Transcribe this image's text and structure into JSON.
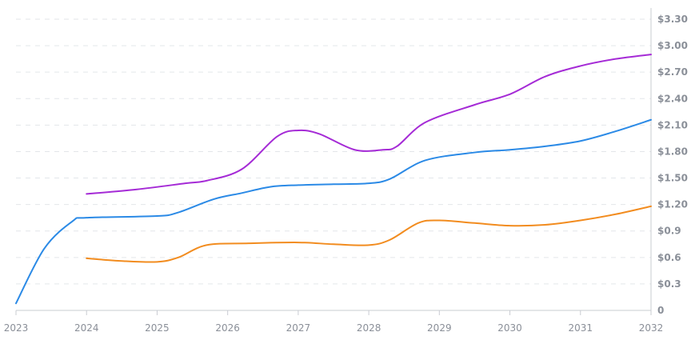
{
  "chart_data": {
    "type": "line",
    "title": "",
    "xlabel": "",
    "ylabel": "",
    "x": [
      "2023",
      "2024",
      "2025",
      "2026",
      "2027",
      "2028",
      "2029",
      "2030",
      "2031",
      "2032"
    ],
    "xlim": [
      2023,
      2032
    ],
    "ylim": [
      0,
      3.3
    ],
    "y_ticks": [
      {
        "value": 0,
        "label": "0"
      },
      {
        "value": 0.3,
        "label": "$0.3"
      },
      {
        "value": 0.6,
        "label": "$0.6"
      },
      {
        "value": 0.9,
        "label": "$0.9"
      },
      {
        "value": 1.2,
        "label": "$1.20"
      },
      {
        "value": 1.5,
        "label": "$1.50"
      },
      {
        "value": 1.8,
        "label": "$1.80"
      },
      {
        "value": 2.1,
        "label": "$2.10"
      },
      {
        "value": 2.4,
        "label": "$2.40"
      },
      {
        "value": 2.7,
        "label": "$2.70"
      },
      {
        "value": 3.0,
        "label": "$3.00"
      },
      {
        "value": 3.3,
        "label": "$3.30"
      }
    ],
    "y_axis_position": "right",
    "grid": true,
    "legend": "none",
    "series": [
      {
        "color": "#a52bd6",
        "points": [
          [
            2024,
            1.32
          ],
          [
            2024.7,
            1.37
          ],
          [
            2025.4,
            1.44
          ],
          [
            2025.7,
            1.47
          ],
          [
            2026.2,
            1.6
          ],
          [
            2026.7,
            1.97
          ],
          [
            2027.0,
            2.04
          ],
          [
            2027.3,
            2.0
          ],
          [
            2027.8,
            1.82
          ],
          [
            2028.2,
            1.82
          ],
          [
            2028.4,
            1.86
          ],
          [
            2028.8,
            2.13
          ],
          [
            2029.5,
            2.33
          ],
          [
            2030.0,
            2.45
          ],
          [
            2030.5,
            2.65
          ],
          [
            2031.0,
            2.77
          ],
          [
            2031.5,
            2.85
          ],
          [
            2032.0,
            2.9
          ]
        ]
      },
      {
        "color": "#2b8ae6",
        "points": [
          [
            2023.0,
            0.08
          ],
          [
            2023.4,
            0.7
          ],
          [
            2023.8,
            1.01
          ],
          [
            2024.0,
            1.05
          ],
          [
            2025.0,
            1.07
          ],
          [
            2025.3,
            1.11
          ],
          [
            2025.8,
            1.26
          ],
          [
            2026.2,
            1.33
          ],
          [
            2026.6,
            1.4
          ],
          [
            2027.0,
            1.42
          ],
          [
            2027.5,
            1.43
          ],
          [
            2028.0,
            1.44
          ],
          [
            2028.3,
            1.49
          ],
          [
            2028.8,
            1.7
          ],
          [
            2029.5,
            1.79
          ],
          [
            2030.0,
            1.82
          ],
          [
            2030.5,
            1.86
          ],
          [
            2031.0,
            1.92
          ],
          [
            2031.5,
            2.03
          ],
          [
            2032.0,
            2.16
          ]
        ]
      },
      {
        "color": "#f28c1f",
        "points": [
          [
            2024.0,
            0.59
          ],
          [
            2024.5,
            0.56
          ],
          [
            2025.0,
            0.55
          ],
          [
            2025.3,
            0.6
          ],
          [
            2025.7,
            0.74
          ],
          [
            2026.3,
            0.76
          ],
          [
            2027.0,
            0.77
          ],
          [
            2027.5,
            0.75
          ],
          [
            2028.0,
            0.74
          ],
          [
            2028.3,
            0.8
          ],
          [
            2028.7,
            0.99
          ],
          [
            2029.0,
            1.02
          ],
          [
            2029.5,
            0.99
          ],
          [
            2030.0,
            0.96
          ],
          [
            2030.5,
            0.97
          ],
          [
            2031.0,
            1.02
          ],
          [
            2031.5,
            1.09
          ],
          [
            2032.0,
            1.18
          ]
        ]
      }
    ]
  }
}
